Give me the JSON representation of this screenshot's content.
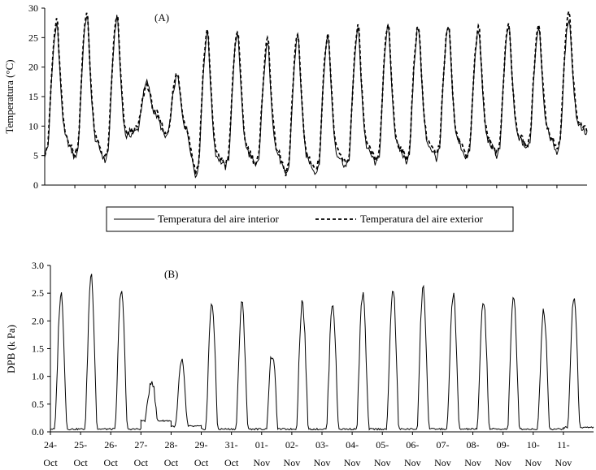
{
  "chart_data": [
    {
      "panel": "(A)",
      "type": "line",
      "ylabel": "Temperatura (°C)",
      "ylim": [
        0,
        30
      ],
      "yticks": [
        "0",
        "5",
        "10",
        "15",
        "20",
        "25",
        "30"
      ],
      "grid": false,
      "legend": "bottom",
      "days": [
        "24-Oct",
        "25-Oct",
        "26-Oct",
        "27-Oct",
        "28-Oct",
        "29-Oct",
        "31-Oct",
        "01-Nov",
        "02-Nov",
        "03-Nov",
        "04-Nov",
        "05-Nov",
        "06-Nov",
        "07-Nov",
        "08-Nov",
        "09-Nov",
        "10-Nov",
        "11-Nov"
      ],
      "series": [
        {
          "name": "Temperatura del aire interior",
          "style": "solid",
          "daily_max": [
            27.5,
            29.0,
            28.5,
            17.5,
            18.5,
            26.0,
            26.0,
            24.0,
            25.5,
            25.5,
            26.5,
            27.0,
            27.0,
            27.0,
            26.5,
            27.0,
            27.0,
            28.5
          ],
          "daily_min": [
            5.0,
            4.5,
            4.0,
            9.0,
            8.0,
            1.5,
            3.0,
            3.0,
            1.5,
            2.0,
            3.0,
            3.5,
            4.0,
            4.5,
            4.5,
            5.0,
            6.0,
            5.5
          ]
        },
        {
          "name": "Temperatura del aire exterior",
          "style": "dashed",
          "daily_max": [
            28.0,
            29.5,
            29.0,
            17.0,
            19.0,
            26.5,
            26.5,
            25.0,
            26.0,
            26.0,
            27.0,
            27.5,
            27.5,
            27.5,
            27.0,
            27.5,
            27.5,
            29.5
          ],
          "daily_min": [
            5.5,
            5.0,
            4.5,
            9.5,
            8.5,
            2.0,
            3.5,
            3.5,
            2.0,
            2.5,
            3.5,
            4.0,
            4.5,
            5.0,
            5.0,
            5.5,
            6.5,
            6.0
          ]
        }
      ]
    },
    {
      "panel": "(B)",
      "type": "line",
      "ylabel": "DPB (k Pa)",
      "ylim": [
        0,
        3.0
      ],
      "yticks": [
        "0.0",
        "0.5",
        "1.0",
        "1.5",
        "2.0",
        "2.5",
        "3.0"
      ],
      "grid": false,
      "xticks": [
        [
          "24-",
          "Oct"
        ],
        [
          "25-",
          "Oct"
        ],
        [
          "26-",
          "Oct"
        ],
        [
          "27-",
          "Oct"
        ],
        [
          "28-",
          "Oct"
        ],
        [
          "29-",
          "Oct"
        ],
        [
          "31-",
          "Oct"
        ],
        [
          "01-",
          "Nov"
        ],
        [
          "02-",
          "Nov"
        ],
        [
          "03-",
          "Nov"
        ],
        [
          "04-",
          "Nov"
        ],
        [
          "05-",
          "Nov"
        ],
        [
          "06-",
          "Nov"
        ],
        [
          "07-",
          "Nov"
        ],
        [
          "08-",
          "Nov"
        ],
        [
          "09-",
          "Nov"
        ],
        [
          "10-",
          "Nov"
        ],
        [
          "11-",
          "Nov"
        ]
      ],
      "series": [
        {
          "style": "solid",
          "daily_peak": [
            2.5,
            2.85,
            2.6,
            0.95,
            1.25,
            2.35,
            2.3,
            1.4,
            2.35,
            2.35,
            2.5,
            2.6,
            2.6,
            2.5,
            2.4,
            2.4,
            2.2,
            2.45
          ],
          "daily_base": [
            0.05,
            0.05,
            0.05,
            0.2,
            0.1,
            0.05,
            0.05,
            0.05,
            0.05,
            0.05,
            0.05,
            0.05,
            0.05,
            0.05,
            0.05,
            0.05,
            0.05,
            0.08
          ]
        }
      ]
    }
  ]
}
